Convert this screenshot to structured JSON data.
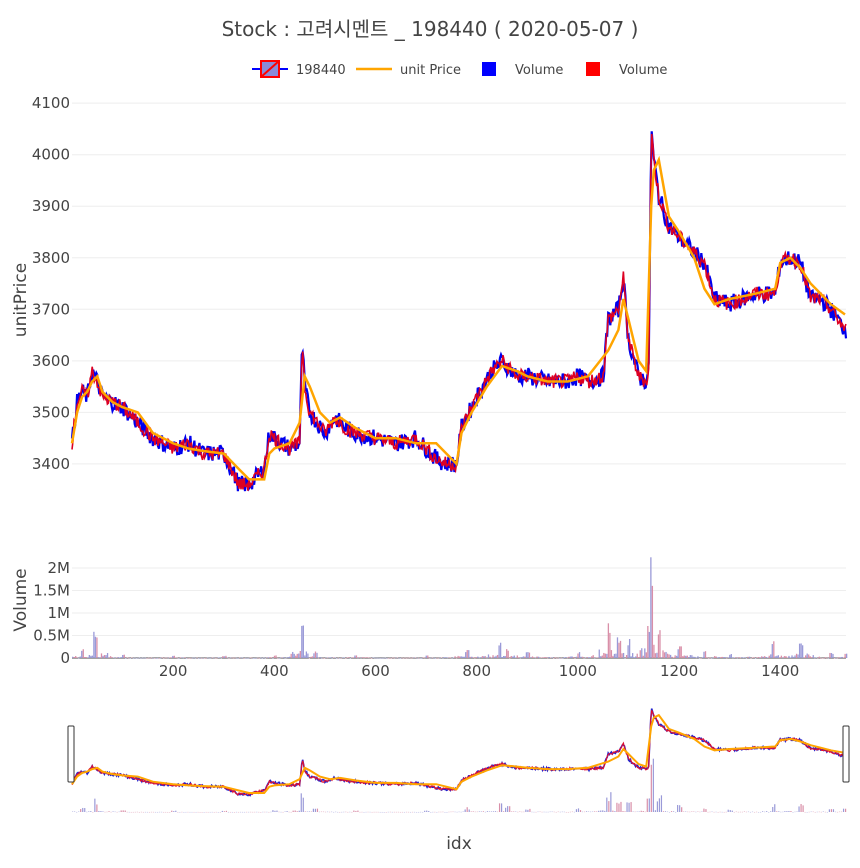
{
  "title": "Stock :  고려시멘트 _ 198440 ( 2020-05-07 )",
  "legend": [
    {
      "label": "198440",
      "kind": "candle",
      "color_up": "#ff0000",
      "color_down": "#0000ff",
      "fill": "#8a8ad8"
    },
    {
      "label": "unit Price",
      "kind": "line",
      "color": "#ffa500"
    },
    {
      "label": "Volume",
      "kind": "square",
      "color": "#0000ff"
    },
    {
      "label": "Volume",
      "kind": "square",
      "color": "#ff0000"
    }
  ],
  "axes": {
    "price_ylabel": "unitPrice",
    "volume_ylabel": "Volume",
    "xlabel": "idx",
    "price_ticks": [
      "3400",
      "3500",
      "3600",
      "3700",
      "3800",
      "3900",
      "4000",
      "4100"
    ],
    "volume_ticks": [
      "0",
      "0.5M",
      "1M",
      "1.5M",
      "2M"
    ],
    "x_ticks": [
      "200",
      "400",
      "600",
      "800",
      "1000",
      "1200",
      "1400"
    ]
  },
  "chart_data": {
    "type": "line",
    "description_series": "intraday price by index with moving average and volume",
    "xlim": [
      0,
      1530
    ],
    "price_ylim": [
      3330,
      4110
    ],
    "volume_ylim": [
      0,
      2400000
    ],
    "price_series": {
      "name": "198440",
      "x": [
        0,
        10,
        20,
        30,
        40,
        50,
        60,
        80,
        100,
        130,
        160,
        200,
        230,
        260,
        300,
        330,
        350,
        380,
        390,
        400,
        430,
        450,
        455,
        460,
        470,
        500,
        520,
        540,
        560,
        600,
        640,
        680,
        720,
        740,
        760,
        770,
        800,
        830,
        850,
        880,
        900,
        940,
        980,
        1000,
        1020,
        1050,
        1060,
        1080,
        1090,
        1100,
        1120,
        1135,
        1140,
        1145,
        1150,
        1160,
        1180,
        1200,
        1230,
        1250,
        1270,
        1300,
        1350,
        1390,
        1400,
        1420,
        1440,
        1460,
        1480,
        1500,
        1528
      ],
      "values": [
        3440,
        3520,
        3540,
        3530,
        3580,
        3560,
        3530,
        3520,
        3510,
        3480,
        3450,
        3430,
        3440,
        3420,
        3420,
        3360,
        3360,
        3390,
        3460,
        3450,
        3430,
        3440,
        3640,
        3550,
        3500,
        3460,
        3490,
        3470,
        3460,
        3450,
        3440,
        3450,
        3410,
        3400,
        3400,
        3470,
        3530,
        3580,
        3600,
        3570,
        3570,
        3560,
        3560,
        3570,
        3560,
        3570,
        3680,
        3700,
        3760,
        3640,
        3570,
        3560,
        3580,
        4050,
        3990,
        3920,
        3860,
        3840,
        3810,
        3790,
        3720,
        3710,
        3730,
        3730,
        3790,
        3800,
        3790,
        3720,
        3720,
        3700,
        3660
      ]
    },
    "ma_series": {
      "name": "unit Price",
      "x": [
        0,
        10,
        20,
        30,
        40,
        50,
        60,
        80,
        100,
        130,
        160,
        200,
        230,
        260,
        300,
        330,
        350,
        380,
        390,
        400,
        430,
        450,
        460,
        470,
        490,
        510,
        530,
        560,
        600,
        640,
        680,
        720,
        740,
        760,
        770,
        790,
        820,
        850,
        880,
        900,
        940,
        980,
        1020,
        1060,
        1080,
        1090,
        1100,
        1120,
        1135,
        1145,
        1150,
        1160,
        1180,
        1200,
        1230,
        1250,
        1270,
        1300,
        1350,
        1390,
        1400,
        1420,
        1440,
        1460,
        1480,
        1500,
        1528
      ],
      "values": [
        3440,
        3500,
        3530,
        3540,
        3560,
        3570,
        3540,
        3520,
        3510,
        3500,
        3460,
        3440,
        3430,
        3425,
        3420,
        3390,
        3370,
        3370,
        3420,
        3430,
        3440,
        3480,
        3570,
        3550,
        3500,
        3480,
        3490,
        3470,
        3450,
        3450,
        3440,
        3440,
        3420,
        3400,
        3460,
        3500,
        3550,
        3590,
        3580,
        3570,
        3560,
        3560,
        3570,
        3620,
        3660,
        3720,
        3680,
        3600,
        3580,
        3900,
        3970,
        3990,
        3880,
        3850,
        3800,
        3740,
        3710,
        3720,
        3730,
        3740,
        3790,
        3800,
        3780,
        3750,
        3730,
        3710,
        3690
      ]
    },
    "volume_series": {
      "name": "Volume",
      "x": [
        20,
        45,
        100,
        200,
        300,
        400,
        455,
        480,
        560,
        700,
        780,
        845,
        860,
        900,
        1000,
        1060,
        1080,
        1100,
        1140,
        1145,
        1160,
        1200,
        1250,
        1300,
        1385,
        1440,
        1500,
        1528
      ],
      "values": [
        200000,
        600000,
        80000,
        60000,
        50000,
        80000,
        800000,
        150000,
        80000,
        60000,
        200000,
        400000,
        250000,
        150000,
        150000,
        800000,
        500000,
        450000,
        900000,
        2350000,
        700000,
        300000,
        180000,
        100000,
        400000,
        400000,
        120000,
        150000
      ]
    }
  }
}
